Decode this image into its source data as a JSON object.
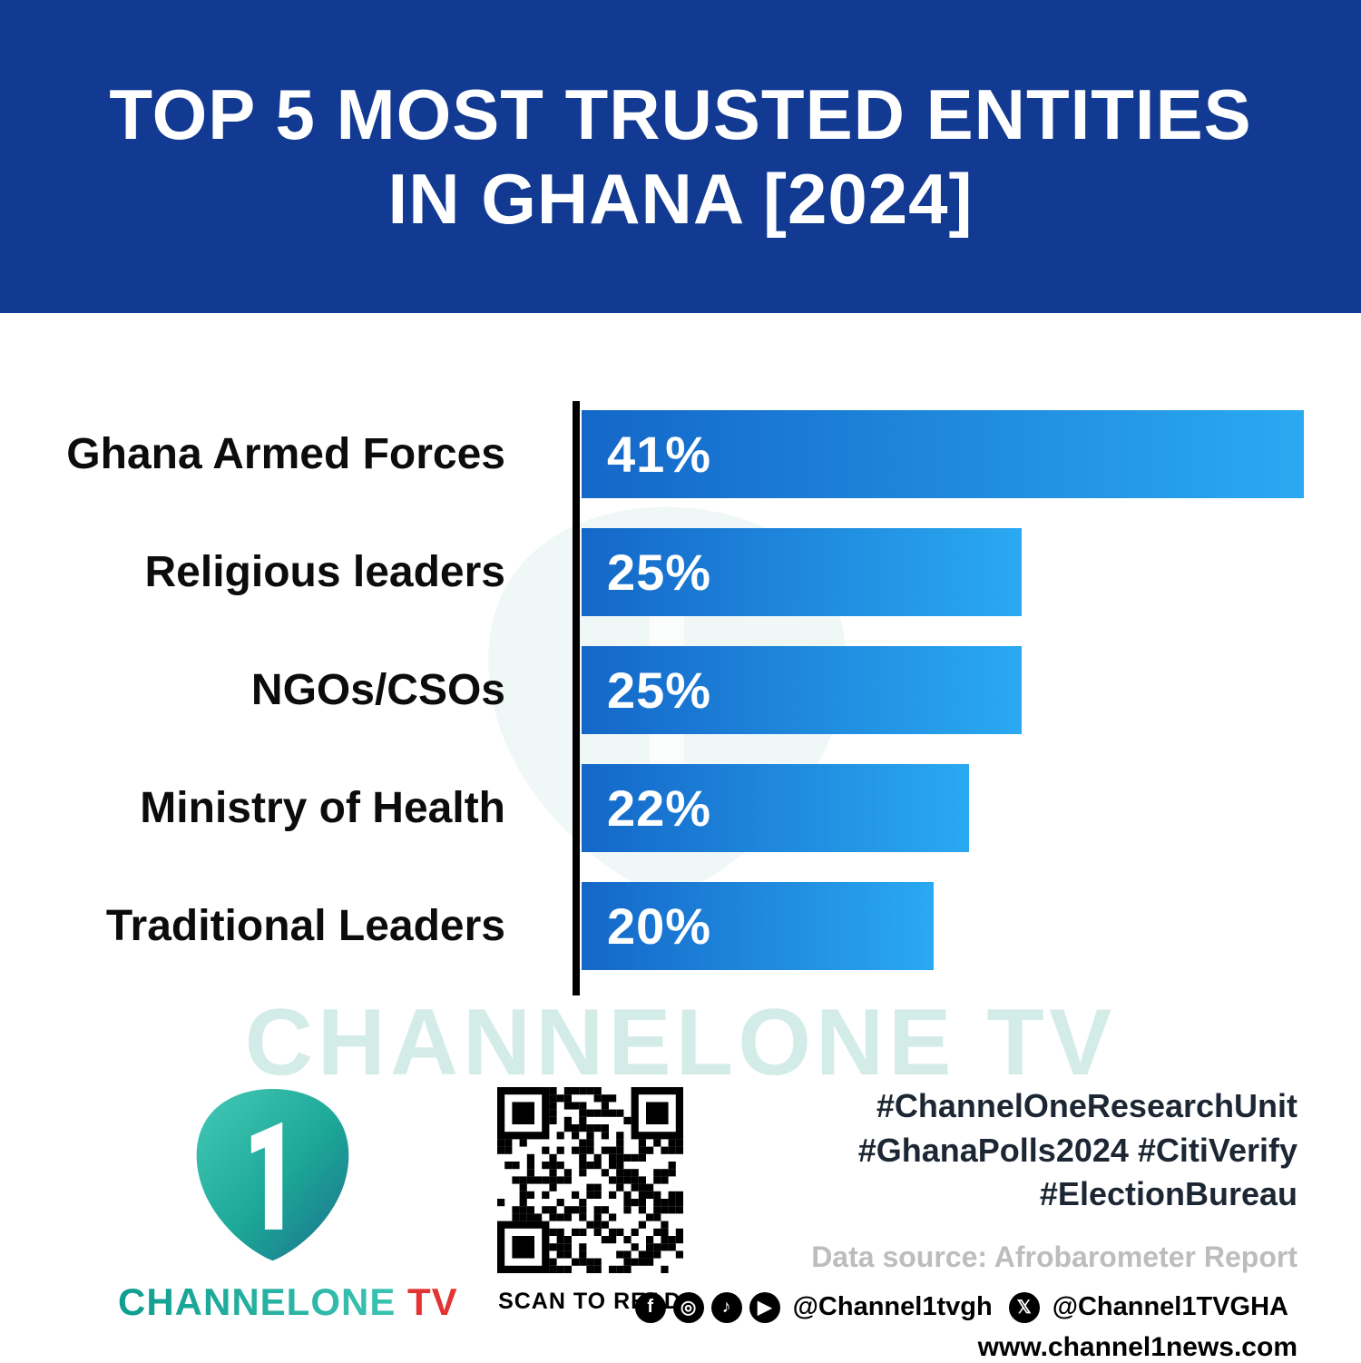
{
  "title": "TOP 5 MOST TRUSTED ENTITIES IN GHANA [2024]",
  "chart_data": {
    "type": "bar",
    "orientation": "horizontal",
    "title": "Top 5 Most Trusted Entities in Ghana [2024]",
    "categories": [
      "Ghana Armed Forces",
      "Religious leaders",
      "NGOs/CSOs",
      "Ministry of Health",
      "Traditional Leaders"
    ],
    "values": [
      41,
      25,
      25,
      22,
      20
    ],
    "value_labels": [
      "41%",
      "25%",
      "25%",
      "22%",
      "20%"
    ],
    "xlabel": "",
    "ylabel": "",
    "xlim": [
      0,
      41
    ],
    "grid": false,
    "legend": false,
    "bar_color_start": "#1467c8",
    "bar_color_end": "#2aa9f1"
  },
  "watermark_text": "CHANNELONE TV",
  "footer": {
    "logo": {
      "icon_name": "channel-one-logo",
      "brand_channel": "CHANNELONE",
      "brand_tv": " TV"
    },
    "qr_caption": "SCAN TO READ",
    "hashtags_line1": "#ChannelOneResearchUnit",
    "hashtags_line2": "#GhanaPolls2024 #CitiVerify",
    "hashtags_line3": "#ElectionBureau",
    "data_source": "Data source: Afrobarometer Report",
    "social": {
      "icons_group1": [
        "facebook-icon",
        "instagram-icon",
        "tiktok-icon",
        "youtube-icon"
      ],
      "handle1": "@Channel1tvgh",
      "icon_group2": "x-icon",
      "handle2": "@Channel1TVGHA"
    },
    "website": "www.channel1news.com"
  },
  "colors": {
    "banner_bg": "#123a92",
    "bar_gradient_start": "#1467c8",
    "bar_gradient_end": "#2aa9f1",
    "axis": "#000000",
    "label_text": "#0c0c0c",
    "value_text": "#ffffff",
    "watermark": "#d4ece8",
    "hashtag_text": "#1c2733",
    "data_source_text": "#bdbdbd",
    "brand_teal": "#17a99c",
    "brand_red": "#e23434"
  }
}
